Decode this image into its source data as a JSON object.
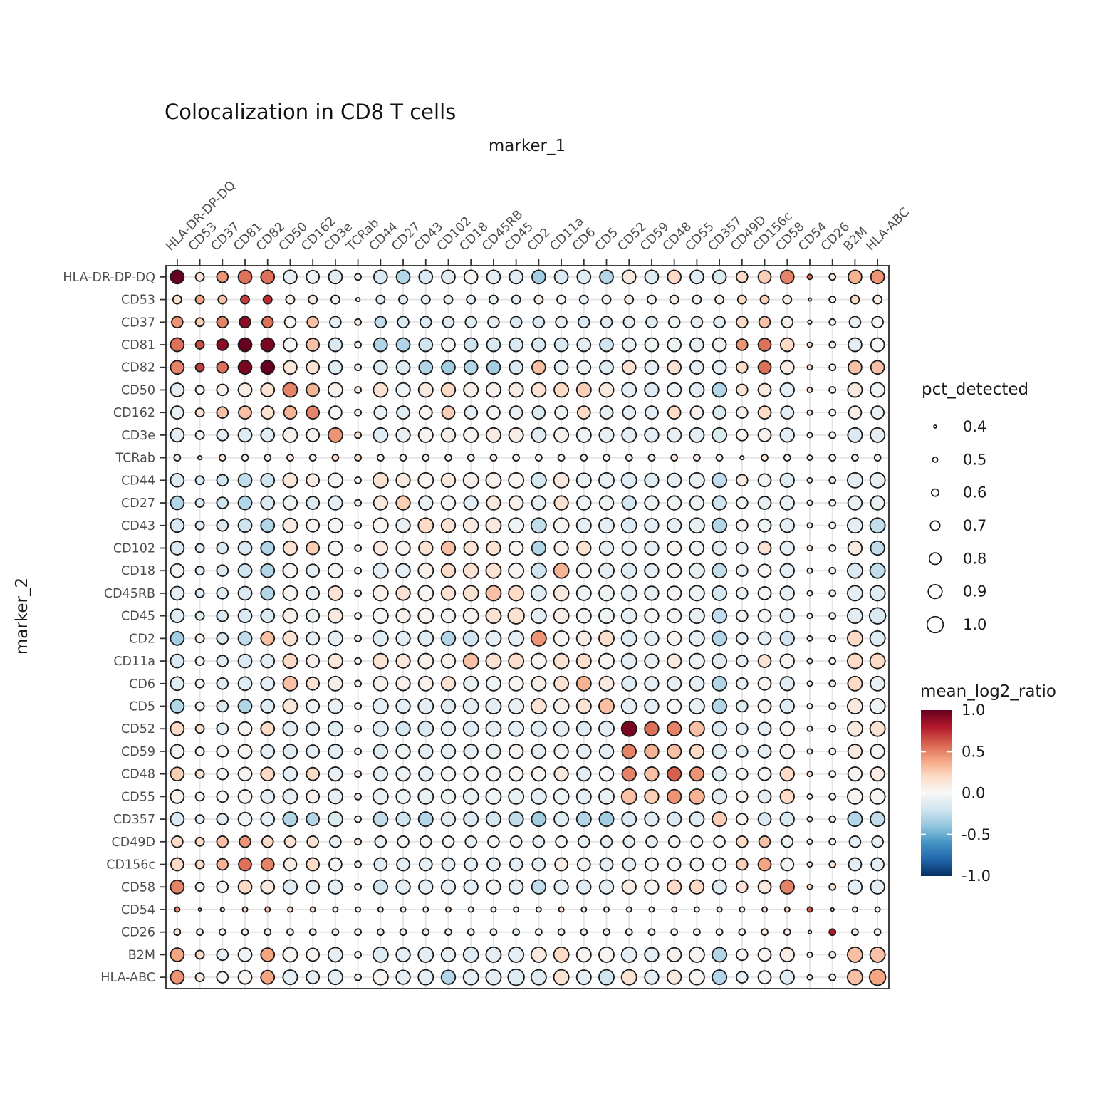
{
  "title": "Colocalization in CD8 T cells",
  "x_axis_title": "marker_1",
  "y_axis_title": "marker_2",
  "size_legend": {
    "title": "pct_detected",
    "values": [
      "0.4",
      "0.5",
      "0.6",
      "0.7",
      "0.8",
      "0.9",
      "1.0"
    ]
  },
  "color_legend": {
    "title": "mean_log2_ratio",
    "ticks": [
      "1.0",
      "0.5",
      "0.0",
      "-0.5",
      "-1.0"
    ],
    "domain": [
      -1.0,
      1.0
    ],
    "palette_rdbu": [
      "#053061",
      "#2166ac",
      "#4393c3",
      "#92c5de",
      "#d1e5f0",
      "#f7f7f7",
      "#fddbc7",
      "#f4a582",
      "#d6604d",
      "#b2182b",
      "#67001f"
    ]
  },
  "chart_data": {
    "type": "heatmap",
    "style": "dot-matrix",
    "title": "Colocalization in CD8 T cells",
    "xlabel": "marker_1",
    "ylabel": "marker_2",
    "color_variable": "mean_log2_ratio",
    "size_variable": "pct_detected",
    "x_categories": [
      "HLA-DR-DP-DQ",
      "CD53",
      "CD37",
      "CD81",
      "CD82",
      "CD50",
      "CD162",
      "CD3e",
      "TCRab",
      "CD44",
      "CD27",
      "CD43",
      "CD102",
      "CD18",
      "CD45RB",
      "CD45",
      "CD2",
      "CD11a",
      "CD6",
      "CD5",
      "CD52",
      "CD59",
      "CD48",
      "CD55",
      "CD357",
      "CD49D",
      "CD156c",
      "CD58",
      "CD54",
      "CD26",
      "B2M",
      "HLA-ABC"
    ],
    "y_categories": [
      "HLA-DR-DP-DQ",
      "CD53",
      "CD37",
      "CD81",
      "CD82",
      "CD50",
      "CD162",
      "CD3e",
      "TCRab",
      "CD44",
      "CD27",
      "CD43",
      "CD102",
      "CD18",
      "CD45RB",
      "CD45",
      "CD2",
      "CD11a",
      "CD6",
      "CD5",
      "CD52",
      "CD59",
      "CD48",
      "CD55",
      "CD357",
      "CD49D",
      "CD156c",
      "CD58",
      "CD54",
      "CD26",
      "B2M",
      "HLA-ABC"
    ],
    "mean_log2_ratio": [
      [
        1.0,
        0.15,
        0.45,
        0.55,
        0.55,
        -0.1,
        -0.05,
        -0.12,
        0.05,
        -0.15,
        -0.3,
        -0.15,
        -0.12,
        0.02,
        -0.1,
        -0.12,
        -0.35,
        -0.15,
        -0.12,
        -0.3,
        0.1,
        -0.12,
        0.2,
        -0.12,
        -0.15,
        0.2,
        0.25,
        0.5,
        0.55,
        0.1,
        0.35,
        0.45
      ],
      [
        0.15,
        0.4,
        0.3,
        0.7,
        0.75,
        0.05,
        0.1,
        -0.05,
        0.1,
        -0.12,
        -0.12,
        -0.1,
        -0.08,
        -0.1,
        -0.08,
        -0.1,
        0.08,
        0.02,
        -0.08,
        -0.06,
        0.08,
        -0.04,
        0.08,
        0.02,
        0.06,
        0.2,
        0.25,
        0.08,
        0.2,
        0.05,
        0.2,
        0.1
      ],
      [
        0.45,
        0.25,
        0.5,
        0.9,
        0.55,
        0.02,
        0.3,
        -0.1,
        0.1,
        -0.25,
        -0.15,
        -0.15,
        -0.12,
        -0.12,
        -0.1,
        -0.15,
        -0.15,
        -0.1,
        -0.15,
        -0.12,
        -0.1,
        -0.12,
        -0.05,
        -0.1,
        -0.12,
        0.2,
        0.3,
        0.05,
        0.05,
        0.05,
        -0.08,
        -0.02
      ],
      [
        0.55,
        0.65,
        0.9,
        1.0,
        0.95,
        0.02,
        0.3,
        -0.15,
        0.02,
        -0.3,
        -0.3,
        -0.2,
        0.02,
        -0.2,
        -0.15,
        -0.15,
        -0.15,
        -0.15,
        -0.1,
        -0.2,
        -0.08,
        -0.05,
        -0.05,
        -0.08,
        -0.05,
        0.45,
        0.55,
        0.2,
        0.2,
        0.05,
        -0.1,
        0.0
      ],
      [
        0.5,
        0.7,
        0.55,
        0.95,
        1.0,
        0.12,
        0.15,
        -0.12,
        -0.1,
        -0.15,
        -0.12,
        -0.3,
        -0.35,
        -0.3,
        -0.35,
        -0.15,
        0.3,
        -0.08,
        -0.05,
        -0.12,
        0.15,
        -0.1,
        0.15,
        -0.1,
        -0.1,
        0.2,
        0.55,
        0.08,
        0.2,
        0.05,
        0.3,
        0.3
      ],
      [
        -0.1,
        0.02,
        0.05,
        0.08,
        0.15,
        0.5,
        0.35,
        0.05,
        0.1,
        0.15,
        -0.05,
        0.1,
        0.2,
        0.05,
        0.05,
        0.08,
        0.15,
        0.2,
        0.25,
        0.1,
        -0.1,
        -0.12,
        -0.05,
        -0.1,
        -0.3,
        0.15,
        0.1,
        -0.1,
        0.15,
        -0.05,
        0.1,
        -0.05
      ],
      [
        -0.08,
        0.15,
        0.3,
        0.3,
        0.15,
        0.35,
        0.5,
        0.02,
        0.05,
        -0.08,
        -0.12,
        0.02,
        0.25,
        -0.1,
        0.02,
        -0.08,
        -0.15,
        -0.05,
        0.2,
        -0.08,
        -0.1,
        -0.1,
        0.2,
        0.05,
        -0.15,
        0.05,
        0.2,
        -0.1,
        0.1,
        0.02,
        0.08,
        -0.08
      ],
      [
        -0.1,
        0.02,
        -0.1,
        -0.12,
        -0.12,
        0.05,
        0.02,
        0.45,
        0.18,
        -0.12,
        -0.08,
        0.02,
        0.08,
        0.02,
        0.08,
        0.08,
        -0.12,
        0.05,
        -0.05,
        -0.08,
        -0.1,
        -0.1,
        -0.08,
        -0.1,
        -0.15,
        0.02,
        0.05,
        -0.1,
        0.02,
        -0.05,
        -0.15,
        -0.1
      ],
      [
        0.05,
        0.1,
        0.12,
        0.02,
        -0.1,
        0.08,
        0.02,
        0.2,
        0.18,
        0.02,
        -0.05,
        0.02,
        0.05,
        0.02,
        0.08,
        0.02,
        0.02,
        0.02,
        0.05,
        0.02,
        0.06,
        0.05,
        0.08,
        0.08,
        0.02,
        0.02,
        0.1,
        0.02,
        0.0,
        0.02,
        0.05,
        -0.05
      ],
      [
        -0.15,
        -0.15,
        -0.2,
        -0.25,
        -0.2,
        0.12,
        0.08,
        0.02,
        0.02,
        0.15,
        0.1,
        0.02,
        0.1,
        0.05,
        0.05,
        0.02,
        -0.18,
        0.1,
        -0.08,
        -0.08,
        -0.12,
        -0.12,
        -0.1,
        -0.08,
        -0.25,
        0.1,
        -0.05,
        -0.12,
        0.05,
        -0.1,
        -0.1,
        -0.08
      ],
      [
        -0.3,
        -0.15,
        -0.2,
        -0.3,
        -0.15,
        -0.05,
        -0.12,
        -0.1,
        -0.1,
        0.1,
        0.25,
        -0.08,
        0.02,
        -0.1,
        0.1,
        0.05,
        -0.08,
        0.15,
        -0.05,
        -0.05,
        -0.18,
        -0.05,
        -0.05,
        -0.05,
        -0.2,
        -0.05,
        -0.08,
        -0.08,
        0.02,
        -0.05,
        -0.08,
        -0.08
      ],
      [
        -0.15,
        -0.12,
        -0.15,
        -0.2,
        -0.3,
        0.08,
        0.02,
        0.02,
        0.05,
        0.02,
        -0.08,
        0.2,
        0.15,
        0.1,
        0.1,
        -0.05,
        -0.25,
        0.02,
        -0.1,
        -0.1,
        -0.15,
        -0.1,
        -0.1,
        -0.08,
        -0.3,
        0.02,
        -0.05,
        -0.1,
        0.05,
        -0.05,
        -0.1,
        -0.25
      ],
      [
        -0.15,
        -0.12,
        -0.15,
        -0.15,
        -0.3,
        0.15,
        0.25,
        0.02,
        0.05,
        0.1,
        0.02,
        0.15,
        0.3,
        0.15,
        0.15,
        0.02,
        -0.3,
        0.05,
        0.15,
        -0.1,
        -0.1,
        -0.1,
        0.02,
        -0.05,
        -0.12,
        -0.08,
        0.15,
        -0.1,
        0.12,
        0.02,
        0.1,
        -0.25
      ],
      [
        0.02,
        -0.12,
        -0.15,
        -0.2,
        -0.3,
        0.02,
        -0.1,
        0.02,
        0.02,
        -0.1,
        -0.1,
        0.05,
        0.2,
        0.15,
        0.15,
        0.02,
        -0.2,
        0.35,
        -0.02,
        -0.1,
        -0.12,
        -0.1,
        -0.02,
        -0.08,
        -0.25,
        -0.1,
        0.02,
        -0.1,
        0.05,
        -0.08,
        -0.15,
        -0.25
      ],
      [
        -0.1,
        -0.12,
        -0.12,
        -0.15,
        -0.3,
        0.02,
        -0.1,
        0.15,
        0.05,
        0.05,
        0.15,
        0.02,
        0.15,
        0.15,
        0.3,
        0.2,
        -0.12,
        0.1,
        -0.05,
        -0.05,
        -0.1,
        -0.08,
        0.02,
        -0.05,
        -0.18,
        -0.08,
        0.02,
        -0.1,
        0.02,
        -0.08,
        -0.1,
        -0.12
      ],
      [
        -0.12,
        -0.12,
        -0.15,
        -0.15,
        -0.15,
        0.05,
        -0.05,
        0.1,
        0.02,
        0.02,
        0.05,
        0.02,
        -0.05,
        0.02,
        0.15,
        0.15,
        -0.1,
        0.08,
        -0.02,
        -0.05,
        -0.1,
        0.02,
        0.02,
        -0.08,
        -0.25,
        -0.05,
        0.02,
        -0.1,
        0.02,
        -0.08,
        -0.1,
        -0.15
      ],
      [
        -0.35,
        0.05,
        -0.15,
        -0.25,
        0.3,
        0.15,
        -0.1,
        -0.1,
        -0.05,
        -0.12,
        -0.1,
        -0.12,
        -0.3,
        -0.2,
        -0.1,
        -0.1,
        0.45,
        0.02,
        0.08,
        0.18,
        -0.12,
        -0.1,
        0.02,
        -0.1,
        -0.3,
        -0.1,
        -0.1,
        -0.2,
        0.02,
        0.02,
        0.2,
        -0.12
      ],
      [
        -0.15,
        0.02,
        -0.12,
        -0.15,
        -0.1,
        0.2,
        0.05,
        0.1,
        0.02,
        0.15,
        0.12,
        0.05,
        0.05,
        0.3,
        0.15,
        0.18,
        0.02,
        0.15,
        0.18,
        0.02,
        -0.1,
        -0.08,
        0.1,
        -0.05,
        -0.12,
        -0.1,
        0.15,
        0.02,
        0.1,
        0.02,
        0.2,
        0.2
      ],
      [
        -0.12,
        0.02,
        -0.12,
        -0.12,
        -0.1,
        0.3,
        0.15,
        0.08,
        0.05,
        0.05,
        0.05,
        0.05,
        0.15,
        -0.08,
        -0.05,
        0.02,
        0.08,
        0.15,
        0.35,
        0.1,
        -0.12,
        -0.1,
        -0.1,
        -0.1,
        -0.3,
        -0.1,
        0.02,
        -0.12,
        0.02,
        -0.08,
        0.2,
        -0.08
      ],
      [
        -0.3,
        0.02,
        -0.15,
        -0.3,
        -0.12,
        0.12,
        -0.05,
        -0.08,
        -0.05,
        -0.1,
        -0.1,
        -0.1,
        -0.12,
        -0.1,
        -0.1,
        -0.08,
        0.15,
        0.05,
        0.15,
        0.3,
        -0.1,
        -0.1,
        0.0,
        -0.08,
        -0.3,
        -0.12,
        0.02,
        -0.12,
        0.02,
        -0.08,
        0.1,
        -0.05
      ],
      [
        0.2,
        0.15,
        -0.12,
        0.02,
        0.2,
        -0.1,
        -0.1,
        -0.12,
        0.06,
        -0.12,
        -0.18,
        -0.15,
        -0.1,
        -0.12,
        -0.1,
        -0.1,
        -0.12,
        -0.1,
        -0.12,
        -0.1,
        0.95,
        0.55,
        0.5,
        0.3,
        -0.15,
        -0.12,
        -0.1,
        0.02,
        0.02,
        0.02,
        0.1,
        0.15
      ],
      [
        0.02,
        0.02,
        0.02,
        0.02,
        -0.1,
        -0.12,
        -0.1,
        -0.1,
        0.05,
        -0.12,
        -0.05,
        -0.1,
        -0.1,
        -0.1,
        -0.08,
        0.02,
        -0.1,
        0.02,
        -0.1,
        -0.1,
        0.5,
        0.35,
        0.3,
        0.2,
        -0.12,
        -0.1,
        -0.1,
        0.02,
        0.02,
        0.02,
        0.1,
        0.02
      ],
      [
        0.25,
        0.15,
        0.02,
        0.02,
        0.2,
        -0.1,
        0.2,
        -0.08,
        0.08,
        -0.1,
        -0.05,
        -0.1,
        0.02,
        -0.02,
        0.02,
        0.02,
        0.02,
        0.1,
        -0.1,
        0.0,
        0.5,
        0.3,
        0.6,
        0.45,
        -0.12,
        0.02,
        0.02,
        0.2,
        0.15,
        0.02,
        0.02,
        0.08
      ],
      [
        0.05,
        0.02,
        0.02,
        0.02,
        -0.1,
        -0.1,
        0.05,
        -0.1,
        0.08,
        -0.08,
        -0.05,
        -0.08,
        -0.05,
        -0.08,
        -0.05,
        -0.08,
        -0.1,
        -0.05,
        -0.1,
        -0.08,
        0.3,
        0.25,
        0.45,
        0.35,
        -0.12,
        0.02,
        -0.1,
        0.2,
        0.02,
        0.02,
        0.02,
        0.02
      ],
      [
        -0.15,
        -0.1,
        -0.12,
        -0.05,
        -0.1,
        -0.3,
        -0.3,
        -0.15,
        0.02,
        -0.25,
        -0.2,
        -0.3,
        -0.12,
        -0.15,
        -0.18,
        -0.25,
        -0.35,
        -0.12,
        -0.3,
        -0.35,
        -0.15,
        -0.12,
        -0.15,
        -0.12,
        0.25,
        0.02,
        -0.15,
        -0.15,
        0.02,
        -0.1,
        -0.3,
        -0.25
      ],
      [
        0.2,
        0.2,
        0.3,
        0.45,
        0.2,
        0.15,
        0.15,
        -0.1,
        0.1,
        -0.1,
        0.02,
        0.02,
        0.02,
        -0.1,
        0.02,
        0.02,
        -0.1,
        0.02,
        -0.1,
        -0.1,
        -0.1,
        -0.1,
        0.02,
        0.02,
        0.02,
        0.2,
        0.3,
        -0.05,
        0.02,
        0.02,
        -0.1,
        -0.1
      ],
      [
        0.2,
        0.2,
        0.35,
        0.55,
        0.5,
        0.08,
        0.2,
        0.02,
        0.1,
        -0.12,
        -0.1,
        -0.1,
        -0.1,
        -0.1,
        -0.1,
        -0.1,
        -0.1,
        0.08,
        0.02,
        -0.1,
        -0.1,
        0.02,
        0.02,
        0.02,
        0.02,
        0.25,
        0.4,
        0.02,
        0.15,
        0.15,
        -0.1,
        -0.1
      ],
      [
        0.5,
        0.02,
        0.02,
        0.2,
        0.1,
        -0.12,
        -0.1,
        -0.1,
        0.08,
        -0.2,
        -0.1,
        -0.1,
        -0.1,
        -0.1,
        0.02,
        -0.1,
        -0.25,
        -0.1,
        -0.12,
        -0.1,
        0.08,
        0.02,
        0.2,
        0.2,
        -0.12,
        0.15,
        0.1,
        0.5,
        0.2,
        0.15,
        -0.1,
        -0.1
      ],
      [
        0.5,
        0.2,
        0.1,
        0.2,
        0.3,
        0.15,
        0.15,
        0.02,
        0.02,
        0.1,
        0.02,
        0.02,
        0.15,
        0.02,
        0.02,
        0.02,
        0.02,
        0.15,
        0.02,
        0.02,
        0.05,
        0.05,
        0.1,
        0.02,
        0.02,
        0.02,
        0.15,
        0.2,
        0.6,
        0.0,
        0.05,
        0.05
      ],
      [
        0.1,
        0.05,
        0.02,
        0.05,
        0.05,
        -0.08,
        -0.1,
        -0.1,
        0.02,
        -0.1,
        -0.08,
        -0.1,
        -0.08,
        -0.05,
        -0.1,
        -0.1,
        0.02,
        0.05,
        -0.1,
        -0.1,
        0.02,
        0.02,
        0.02,
        0.02,
        0.02,
        0.02,
        0.08,
        0.08,
        0.0,
        0.8,
        -0.1,
        -0.05
      ],
      [
        0.4,
        0.2,
        -0.1,
        -0.05,
        0.4,
        0.02,
        0.02,
        -0.1,
        0.05,
        -0.12,
        -0.1,
        -0.1,
        -0.1,
        -0.12,
        -0.1,
        -0.1,
        0.1,
        0.2,
        0.02,
        0.02,
        -0.1,
        -0.1,
        0.05,
        0.02,
        -0.3,
        0.02,
        0.02,
        0.08,
        0.02,
        -0.1,
        0.3,
        0.3
      ],
      [
        0.45,
        0.1,
        0.02,
        0.02,
        0.4,
        -0.1,
        -0.1,
        -0.1,
        -0.05,
        0.02,
        -0.1,
        -0.1,
        -0.3,
        -0.1,
        -0.1,
        -0.12,
        -0.12,
        0.15,
        -0.1,
        -0.2,
        0.15,
        -0.1,
        0.1,
        0.02,
        -0.3,
        -0.1,
        0.02,
        -0.12,
        0.02,
        -0.08,
        0.3,
        0.4
      ]
    ],
    "pct_detected_by_marker": [
      0.88,
      0.66,
      0.78,
      0.88,
      0.88,
      0.92,
      0.85,
      0.92,
      0.56,
      0.95,
      0.9,
      0.95,
      0.9,
      0.95,
      0.95,
      1.0,
      0.95,
      0.95,
      0.92,
      0.95,
      0.95,
      0.9,
      0.9,
      0.95,
      0.92,
      0.78,
      0.85,
      0.9,
      0.5,
      0.56,
      0.95,
      1.0
    ],
    "pct_detected_cell_rule": "min(row_marker_pct, col_marker_pct)",
    "pct_overrides": [
      [
        2,
        29,
        0.4
      ],
      [
        29,
        2,
        0.4
      ],
      [
        2,
        9,
        0.45
      ],
      [
        9,
        2,
        0.45
      ],
      [
        3,
        29,
        0.45
      ],
      [
        29,
        3,
        0.45
      ],
      [
        9,
        26,
        0.44
      ],
      [
        29,
        30,
        0.42
      ],
      [
        30,
        29,
        0.42
      ]
    ],
    "color_range": [
      -1.0,
      1.0
    ],
    "grid": true,
    "legend_position": "right"
  }
}
